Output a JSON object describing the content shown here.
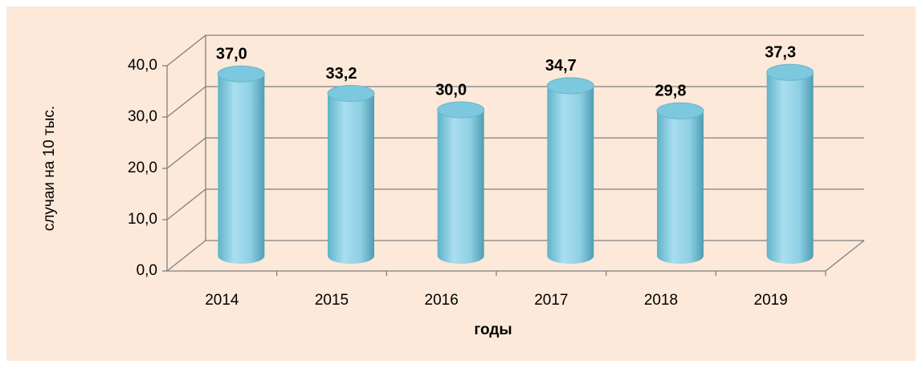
{
  "chart_data": {
    "type": "bar",
    "categories": [
      "2014",
      "2015",
      "2016",
      "2017",
      "2018",
      "2019"
    ],
    "values": [
      37.0,
      33.2,
      30.0,
      34.7,
      29.8,
      37.3
    ],
    "value_labels": [
      "37,0",
      "33,2",
      "30,0",
      "34,7",
      "29,8",
      "37,3"
    ],
    "color": "#7cc8de",
    "ylim": [
      0,
      40
    ],
    "yticks": [
      {
        "value": 0,
        "label": "0,0"
      },
      {
        "value": 10,
        "label": "10,0"
      },
      {
        "value": 20,
        "label": "20,0"
      },
      {
        "value": 30,
        "label": "30,0"
      },
      {
        "value": 40,
        "label": "40,0"
      }
    ],
    "y_label": "случаи на 10 тыс.",
    "x_label": "годы",
    "grid": true
  }
}
